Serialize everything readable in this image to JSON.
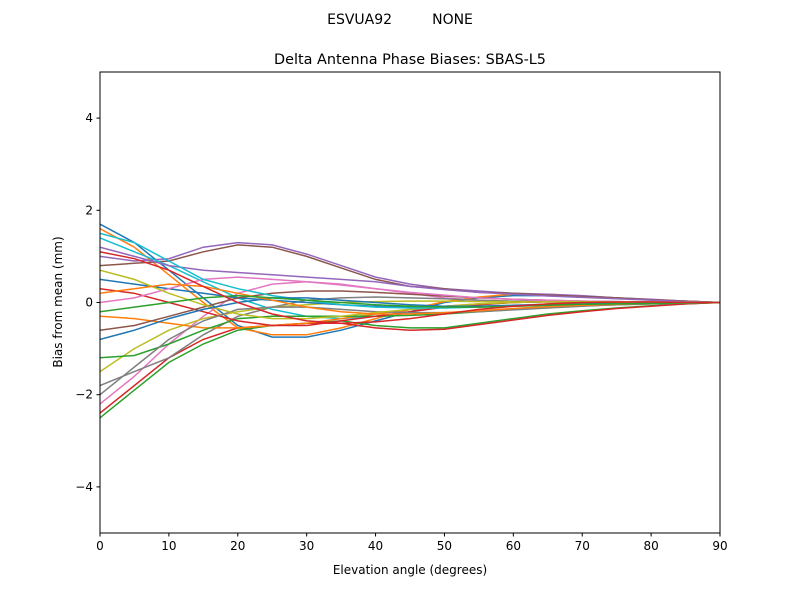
{
  "chart_data": {
    "type": "line",
    "suptitle": "ESVUA92         NONE",
    "title": "Delta Antenna Phase Biases: SBAS-L5",
    "xlabel": "Elevation angle (degrees)",
    "ylabel": "Bias from mean (mm)",
    "xlim": [
      0,
      90
    ],
    "ylim": [
      -5,
      5
    ],
    "xticks": [
      0,
      10,
      20,
      30,
      40,
      50,
      60,
      70,
      80,
      90
    ],
    "yticks": [
      -4,
      -2,
      0,
      2,
      4
    ],
    "ytick_labels": [
      "−4",
      "−2",
      "0",
      "2",
      "4"
    ],
    "grid": false,
    "colors": [
      "#1f77b4",
      "#ff7f0e",
      "#2ca02c",
      "#d62728",
      "#9467bd",
      "#8c564b",
      "#e377c2",
      "#7f7f7f",
      "#bcbd22",
      "#17becf"
    ],
    "x": [
      0,
      5,
      10,
      15,
      20,
      25,
      30,
      35,
      40,
      45,
      50,
      55,
      60,
      65,
      70,
      75,
      80,
      85,
      90
    ],
    "series": [
      {
        "values": [
          1.7,
          1.3,
          0.7,
          0.1,
          -0.5,
          -0.75,
          -0.75,
          -0.6,
          -0.4,
          -0.2,
          0,
          0.1,
          0.15,
          0.15,
          0.12,
          0.1,
          0.06,
          0.03,
          0
        ]
      },
      {
        "values": [
          1.6,
          1.2,
          0.6,
          0.0,
          -0.55,
          -0.7,
          -0.7,
          -0.55,
          -0.35,
          -0.15,
          0.02,
          0.12,
          0.18,
          0.18,
          0.14,
          0.1,
          0.06,
          0.03,
          0
        ]
      },
      {
        "values": [
          -2.5,
          -1.9,
          -1.3,
          -0.9,
          -0.6,
          -0.5,
          -0.45,
          -0.4,
          -0.5,
          -0.55,
          -0.55,
          -0.45,
          -0.35,
          -0.25,
          -0.18,
          -0.12,
          -0.07,
          -0.03,
          0
        ]
      },
      {
        "values": [
          -2.4,
          -1.8,
          -1.2,
          -0.8,
          -0.55,
          -0.5,
          -0.45,
          -0.45,
          -0.55,
          -0.6,
          -0.58,
          -0.48,
          -0.38,
          -0.28,
          -0.2,
          -0.13,
          -0.08,
          -0.03,
          0
        ]
      },
      {
        "values": [
          1.0,
          0.9,
          0.95,
          1.2,
          1.3,
          1.25,
          1.05,
          0.8,
          0.55,
          0.4,
          0.3,
          0.25,
          0.2,
          0.18,
          0.15,
          0.1,
          0.07,
          0.03,
          0
        ]
      },
      {
        "values": [
          0.8,
          0.85,
          0.9,
          1.1,
          1.25,
          1.2,
          1.0,
          0.75,
          0.5,
          0.35,
          0.3,
          0.22,
          0.2,
          0.16,
          0.13,
          0.1,
          0.06,
          0.03,
          0
        ]
      },
      {
        "values": [
          -2.2,
          -1.6,
          -0.9,
          -0.3,
          0.2,
          0.4,
          0.45,
          0.4,
          0.3,
          0.2,
          0.1,
          0.05,
          0.02,
          0.01,
          0,
          0,
          0,
          0,
          0
        ]
      },
      {
        "values": [
          -1.8,
          -1.5,
          -1.2,
          -0.7,
          -0.3,
          -0.1,
          0.05,
          0.1,
          0.12,
          0.1,
          0.08,
          0.05,
          0.03,
          0.02,
          0.01,
          0,
          0,
          0,
          0
        ]
      },
      {
        "values": [
          -1.5,
          -1.0,
          -0.6,
          -0.35,
          -0.2,
          -0.1,
          -0.05,
          0,
          0.02,
          0.03,
          0.03,
          0.02,
          0.02,
          0.01,
          0.01,
          0,
          0,
          0,
          0
        ]
      },
      {
        "values": [
          1.4,
          1.1,
          0.8,
          0.45,
          0.1,
          -0.15,
          -0.3,
          -0.35,
          -0.3,
          -0.2,
          -0.1,
          -0.05,
          0,
          0.02,
          0.02,
          0.02,
          0.01,
          0,
          0
        ]
      },
      {
        "values": [
          0.5,
          0.4,
          0.3,
          0.2,
          0.1,
          0.05,
          0,
          -0.05,
          -0.08,
          -0.1,
          -0.1,
          -0.08,
          -0.06,
          -0.04,
          -0.03,
          -0.02,
          -0.01,
          0,
          0
        ]
      },
      {
        "values": [
          -0.3,
          -0.35,
          -0.45,
          -0.55,
          -0.55,
          -0.5,
          -0.45,
          -0.35,
          -0.25,
          -0.15,
          -0.08,
          -0.03,
          0,
          0.02,
          0.02,
          0.01,
          0.01,
          0,
          0
        ]
      },
      {
        "values": [
          -1.2,
          -1.15,
          -0.9,
          -0.6,
          -0.35,
          -0.3,
          -0.3,
          -0.3,
          -0.3,
          -0.28,
          -0.25,
          -0.2,
          -0.15,
          -0.1,
          -0.07,
          -0.05,
          -0.03,
          -0.01,
          0
        ]
      },
      {
        "values": [
          0.3,
          0.2,
          0.0,
          -0.2,
          -0.4,
          -0.5,
          -0.5,
          -0.4,
          -0.3,
          -0.2,
          -0.1,
          -0.05,
          0,
          0.02,
          0.02,
          0.01,
          0.01,
          0,
          0
        ]
      },
      {
        "values": [
          1.2,
          1.0,
          0.8,
          0.7,
          0.65,
          0.6,
          0.55,
          0.5,
          0.45,
          0.35,
          0.28,
          0.22,
          0.18,
          0.14,
          0.11,
          0.08,
          0.05,
          0.02,
          0
        ]
      },
      {
        "values": [
          -0.6,
          -0.5,
          -0.3,
          -0.1,
          0.1,
          0.2,
          0.25,
          0.25,
          0.22,
          0.18,
          0.14,
          0.1,
          0.07,
          0.05,
          0.03,
          0.02,
          0.01,
          0,
          0
        ]
      },
      {
        "values": [
          0.0,
          0.1,
          0.3,
          0.5,
          0.55,
          0.5,
          0.45,
          0.38,
          0.3,
          0.22,
          0.16,
          0.1,
          0.07,
          0.05,
          0.03,
          0.02,
          0.01,
          0,
          0
        ]
      },
      {
        "values": [
          -2.0,
          -1.4,
          -0.8,
          -0.4,
          -0.15,
          -0.1,
          -0.1,
          -0.15,
          -0.2,
          -0.22,
          -0.22,
          -0.2,
          -0.16,
          -0.12,
          -0.08,
          -0.05,
          -0.03,
          -0.01,
          0
        ]
      },
      {
        "values": [
          0.7,
          0.5,
          0.2,
          -0.05,
          -0.25,
          -0.35,
          -0.35,
          -0.3,
          -0.22,
          -0.15,
          -0.08,
          -0.03,
          0,
          0.02,
          0.02,
          0.01,
          0.01,
          0,
          0
        ]
      },
      {
        "values": [
          1.5,
          1.3,
          0.9,
          0.5,
          0.3,
          0.15,
          0.05,
          -0.05,
          -0.1,
          -0.12,
          -0.12,
          -0.1,
          -0.08,
          -0.06,
          -0.04,
          -0.03,
          -0.02,
          -0.01,
          0
        ]
      },
      {
        "values": [
          -0.8,
          -0.6,
          -0.35,
          -0.15,
          0.0,
          0.1,
          0.1,
          0.05,
          0,
          -0.05,
          -0.08,
          -0.08,
          -0.07,
          -0.05,
          -0.04,
          -0.03,
          -0.02,
          -0.01,
          0
        ]
      },
      {
        "values": [
          0.2,
          0.3,
          0.4,
          0.35,
          0.2,
          0.05,
          -0.1,
          -0.2,
          -0.25,
          -0.25,
          -0.22,
          -0.18,
          -0.13,
          -0.09,
          -0.06,
          -0.04,
          -0.02,
          -0.01,
          0
        ]
      },
      {
        "values": [
          -0.2,
          -0.1,
          0.0,
          0.1,
          0.15,
          0.1,
          0.05,
          0.0,
          -0.05,
          -0.08,
          -0.1,
          -0.1,
          -0.08,
          -0.06,
          -0.04,
          -0.03,
          -0.02,
          -0.01,
          0
        ]
      },
      {
        "values": [
          1.1,
          0.95,
          0.7,
          0.35,
          0.0,
          -0.25,
          -0.4,
          -0.45,
          -0.42,
          -0.35,
          -0.25,
          -0.15,
          -0.08,
          -0.03,
          0,
          0.01,
          0.01,
          0,
          0
        ]
      }
    ]
  }
}
